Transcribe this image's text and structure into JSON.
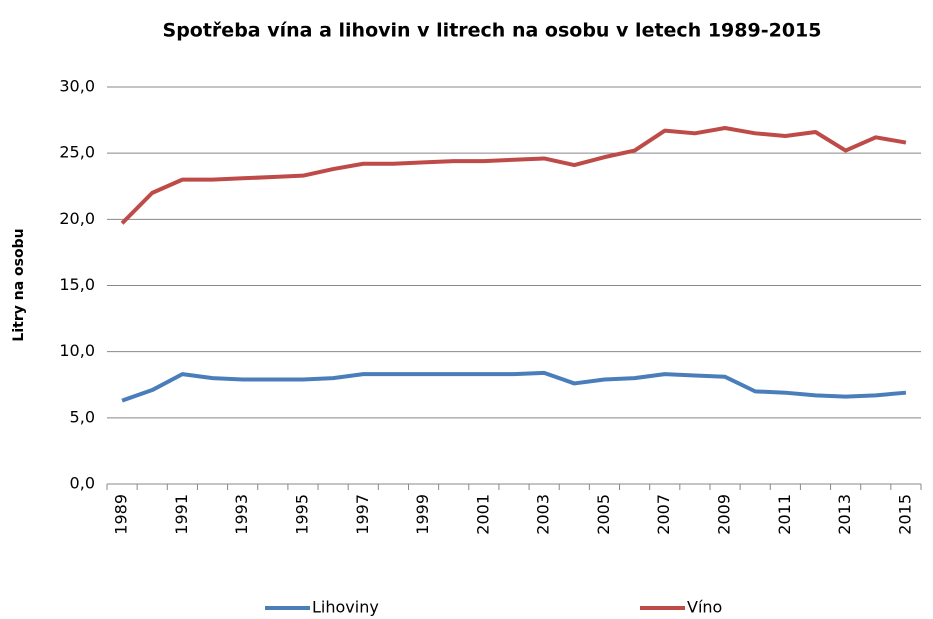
{
  "chart_data": {
    "type": "line",
    "title": "Spotřeba vína a lihovin v litrech na osobu v letech 1989-2015",
    "y_label": "Litry na osobu",
    "categories": [
      "1989",
      null,
      "1991",
      null,
      "1993",
      null,
      "1995",
      null,
      "1997",
      null,
      "1999",
      null,
      "2001",
      null,
      "2003",
      null,
      "2005",
      null,
      "2007",
      null,
      "2009",
      null,
      "2011",
      null,
      "2013",
      null,
      "2015"
    ],
    "series": [
      {
        "name": "Lihoviny",
        "color": "#4a7ebb",
        "values": [
          6.3,
          7.1,
          8.3,
          8.0,
          7.9,
          7.9,
          7.9,
          8.0,
          8.3,
          8.3,
          8.3,
          8.3,
          8.3,
          8.3,
          8.4,
          7.6,
          7.9,
          8.0,
          8.3,
          8.2,
          8.1,
          7.0,
          6.9,
          6.7,
          6.6,
          6.7,
          6.9
        ]
      },
      {
        "name": "Víno",
        "color": "#be4b48",
        "values": [
          19.7,
          22.0,
          23.0,
          23.0,
          23.1,
          23.2,
          23.3,
          23.8,
          24.2,
          24.2,
          24.3,
          24.4,
          24.4,
          24.5,
          24.6,
          24.1,
          24.7,
          25.2,
          26.7,
          26.5,
          26.9,
          26.5,
          26.3,
          26.6,
          25.2,
          26.2,
          25.8
        ]
      }
    ],
    "ylim": [
      0,
      30
    ],
    "yticks": [
      {
        "value": 0,
        "label": "0,0"
      },
      {
        "value": 5,
        "label": "5,0"
      },
      {
        "value": 10,
        "label": "10,0"
      },
      {
        "value": 15,
        "label": "15,0"
      },
      {
        "value": 20,
        "label": "20,0"
      },
      {
        "value": 25,
        "label": "25,0"
      },
      {
        "value": 30,
        "label": "30,0"
      }
    ],
    "grid": true,
    "legend": "bottom"
  }
}
